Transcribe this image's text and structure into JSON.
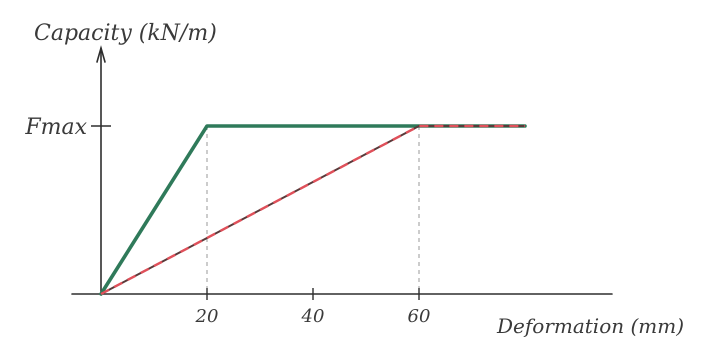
{
  "chart_data": {
    "type": "line",
    "title": "",
    "ylabel": "Capacity (kN/m)",
    "xlabel": "Deformation (mm)",
    "x_ticks": [
      "20",
      "40",
      "60"
    ],
    "x_tick_values": [
      20,
      40,
      60
    ],
    "y_ticks": [
      "Fmax"
    ],
    "y_tick_values": [
      1
    ],
    "xlim": [
      0,
      80
    ],
    "ylim": [
      0,
      1.1
    ],
    "grid": false,
    "legend": "none",
    "series": [
      {
        "color": "#2f7a5a",
        "style": "solid",
        "points": [
          [
            0,
            0
          ],
          [
            20,
            1
          ],
          [
            80,
            1
          ]
        ]
      },
      {
        "color": "#e0505a",
        "style": "dashed",
        "points": [
          [
            0,
            0
          ],
          [
            60,
            1
          ],
          [
            80,
            1
          ]
        ]
      }
    ],
    "guides": [
      {
        "x": 20,
        "y": 1
      },
      {
        "x": 60,
        "y": 1
      }
    ]
  }
}
